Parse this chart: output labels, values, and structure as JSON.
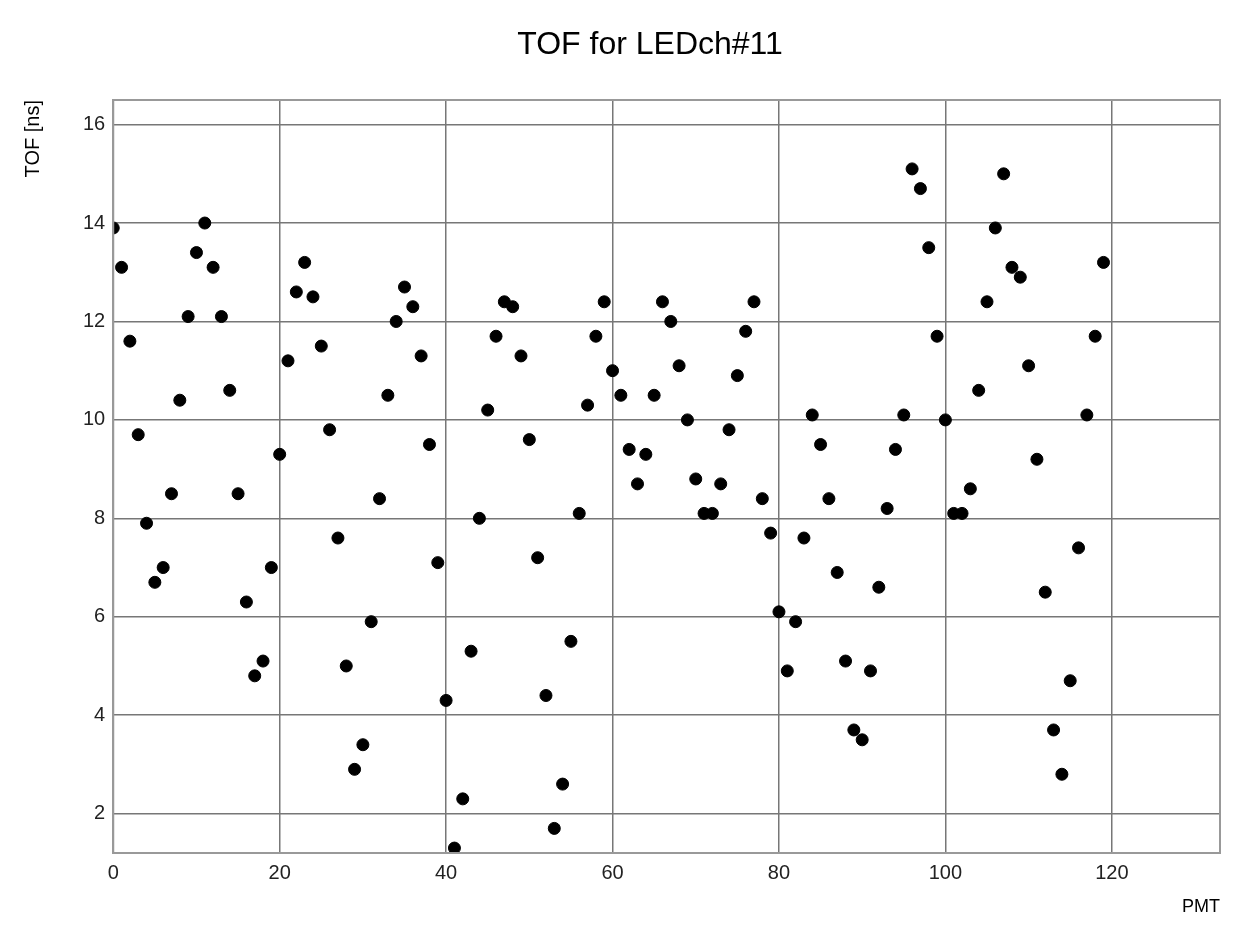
{
  "chart_data": {
    "type": "scatter",
    "title": "TOF for LEDch#11",
    "xlabel": "PMT",
    "ylabel": "TOF [ns]",
    "x": [
      0,
      1,
      2,
      3,
      4,
      5,
      6,
      7,
      8,
      9,
      10,
      11,
      12,
      13,
      14,
      15,
      16,
      17,
      18,
      19,
      20,
      21,
      22,
      23,
      24,
      25,
      26,
      27,
      28,
      29,
      30,
      31,
      32,
      33,
      34,
      35,
      36,
      37,
      38,
      39,
      40,
      41,
      42,
      43,
      44,
      45,
      46,
      47,
      48,
      49,
      50,
      51,
      52,
      53,
      54,
      55,
      56,
      57,
      58,
      59,
      60,
      61,
      62,
      63,
      64,
      65,
      66,
      67,
      68,
      69,
      70,
      71,
      72,
      73,
      74,
      75,
      76,
      77,
      78,
      79,
      80,
      81,
      82,
      83,
      84,
      85,
      86,
      87,
      88,
      89,
      90,
      91,
      92,
      93,
      94,
      95,
      96,
      97,
      98,
      99,
      100,
      101,
      102,
      103,
      104,
      105,
      106,
      107,
      108,
      109,
      110,
      111,
      112,
      113,
      114,
      115,
      116,
      117,
      118,
      119
    ],
    "series": [
      {
        "color": "#000000",
        "values": [
          13.9,
          13.1,
          11.6,
          9.7,
          7.9,
          6.7,
          7.0,
          8.5,
          10.4,
          12.1,
          13.4,
          14.0,
          13.1,
          12.1,
          10.6,
          8.5,
          6.3,
          4.8,
          5.1,
          7.0,
          9.3,
          11.2,
          12.6,
          13.2,
          12.5,
          11.5,
          9.8,
          7.6,
          5.0,
          2.9,
          3.4,
          5.9,
          8.4,
          10.5,
          12.0,
          12.7,
          12.3,
          11.3,
          9.5,
          7.1,
          4.3,
          1.3,
          2.3,
          5.3,
          8.0,
          10.2,
          11.7,
          12.4,
          12.3,
          11.3,
          9.6,
          7.2,
          4.4,
          1.7,
          2.6,
          5.5,
          8.1,
          10.3,
          11.7,
          12.4,
          11.0,
          10.5,
          9.4,
          8.7,
          9.3,
          10.5,
          12.4,
          12.0,
          11.1,
          10.0,
          8.8,
          8.1,
          8.1,
          8.7,
          9.8,
          10.9,
          11.8,
          12.4,
          8.4,
          7.7,
          6.1,
          4.9,
          5.9,
          7.6,
          10.1,
          9.5,
          8.4,
          6.9,
          5.1,
          3.7,
          3.5,
          4.9,
          6.6,
          8.2,
          9.4,
          10.1,
          15.1,
          14.7,
          13.5,
          11.7,
          10.0,
          8.1,
          8.1,
          8.6,
          10.6,
          12.4,
          13.9,
          15.0,
          13.1,
          12.9,
          11.1,
          9.2,
          6.5,
          3.7,
          2.8,
          4.7,
          7.4,
          10.1,
          11.7,
          13.2
        ]
      }
    ],
    "xlim": [
      0,
      133
    ],
    "xticks": [
      0,
      20,
      40,
      60,
      80,
      100,
      120
    ],
    "ylim": [
      1.2,
      16.5
    ],
    "yticks": [
      2,
      4,
      6,
      8,
      10,
      12,
      14,
      16
    ],
    "grid": true,
    "marker": "circle"
  }
}
